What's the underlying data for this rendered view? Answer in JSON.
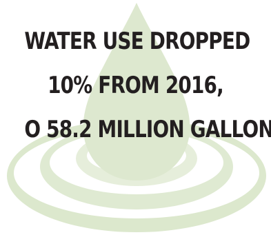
{
  "colors": {
    "background": "#ffffff",
    "text": "#231f20",
    "drop_fill": "#dde8cf",
    "ripple_outer": "#dce8cd",
    "ripple_middle": "#dfead2",
    "ripple_inner": "#e6eedb"
  },
  "icon": "water-drop-with-ripples",
  "headline": {
    "line1": "WATER USE DROPPED",
    "line2": "10% FROM 2016,",
    "line3": "O 58.2 MILLION GALLON"
  }
}
